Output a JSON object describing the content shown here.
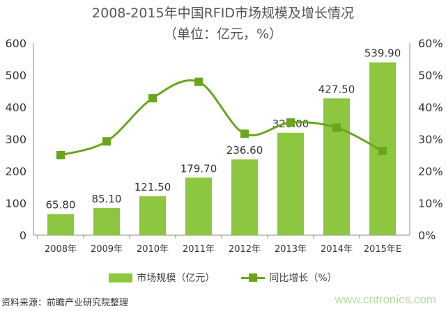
{
  "chart_data": {
    "type": "bar+line",
    "title": "2008-2015年中国RFID市场规模及增长情况",
    "subtitle": "（单位：亿元，%）",
    "categories": [
      "2008年",
      "2009年",
      "2010年",
      "2011年",
      "2012年",
      "2013年",
      "2014年",
      "2015年E"
    ],
    "series": [
      {
        "name": "市场规模（亿元）",
        "type": "bar",
        "axis": "left",
        "color": "#8dc63f",
        "values": [
          65.8,
          85.1,
          121.5,
          179.7,
          236.6,
          320.0,
          427.5,
          539.9
        ],
        "labels": [
          "65.80",
          "85.10",
          "121.50",
          "179.70",
          "236.60",
          "320.00",
          "427.50",
          "539.90"
        ]
      },
      {
        "name": "同比增长（%）",
        "type": "line",
        "axis": "right",
        "color": "#6aa51e",
        "values": [
          25.0,
          29.3,
          42.8,
          47.9,
          31.7,
          35.2,
          33.6,
          26.3
        ]
      }
    ],
    "ylim": [
      0,
      600
    ],
    "y_ticks": [
      "0",
      "100",
      "200",
      "300",
      "400",
      "500",
      "600"
    ],
    "y2lim": [
      0,
      60
    ],
    "y2_ticks": [
      "0%",
      "10%",
      "20%",
      "30%",
      "40%",
      "50%",
      "60%"
    ],
    "grid": false,
    "legend": "bottom"
  },
  "source": "资料来源：前瞻产业研究院整理",
  "watermark": "www.cntronics.com"
}
